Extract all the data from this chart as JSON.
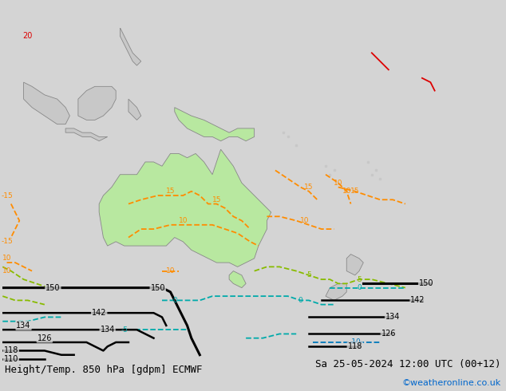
{
  "title_left": "Height/Temp. 850 hPa [gdpm] ECMWF",
  "title_right": "Sa 25-05-2024 12:00 UTC (00+12)",
  "credit": "©weatheronline.co.uk",
  "bg_color": "#d4d4d4",
  "australia_color": "#b8e8a0",
  "land_color": "#c8c8c8",
  "title_fontsize": 9,
  "credit_color": "#0066cc",
  "lon_min": 90,
  "lon_max": 210,
  "lat_min": -62,
  "lat_max": 18
}
